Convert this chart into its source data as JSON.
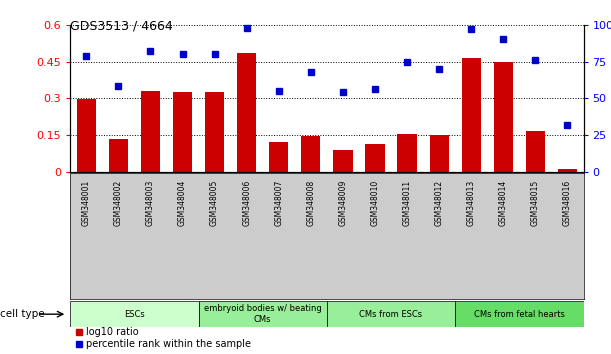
{
  "title": "GDS3513 / 4664",
  "samples": [
    "GSM348001",
    "GSM348002",
    "GSM348003",
    "GSM348004",
    "GSM348005",
    "GSM348006",
    "GSM348007",
    "GSM348008",
    "GSM348009",
    "GSM348010",
    "GSM348011",
    "GSM348012",
    "GSM348013",
    "GSM348014",
    "GSM348015",
    "GSM348016"
  ],
  "log10_ratio": [
    0.295,
    0.135,
    0.33,
    0.325,
    0.325,
    0.485,
    0.12,
    0.145,
    0.09,
    0.115,
    0.155,
    0.15,
    0.465,
    0.45,
    0.165,
    0.01
  ],
  "percentile_rank": [
    79,
    58,
    82,
    80,
    80,
    98,
    55,
    68,
    54,
    56,
    75,
    70,
    97,
    90,
    76,
    32
  ],
  "ylim_left": [
    0,
    0.6
  ],
  "ylim_right": [
    0,
    100
  ],
  "yticks_left": [
    0,
    0.15,
    0.3,
    0.45,
    0.6
  ],
  "yticks_right": [
    0,
    25,
    50,
    75,
    100
  ],
  "ytick_labels_left": [
    "0",
    "0.15",
    "0.3",
    "0.45",
    "0.6"
  ],
  "ytick_labels_right": [
    "0",
    "25",
    "50",
    "75",
    "100%"
  ],
  "bar_color": "#cc0000",
  "dot_color": "#0000cc",
  "cell_type_groups": [
    {
      "label": "ESCs",
      "start": 0,
      "end": 3,
      "color": "#ccffcc"
    },
    {
      "label": "embryoid bodies w/ beating\nCMs",
      "start": 4,
      "end": 7,
      "color": "#99ee99"
    },
    {
      "label": "CMs from ESCs",
      "start": 8,
      "end": 11,
      "color": "#99ee99"
    },
    {
      "label": "CMs from fetal hearts",
      "start": 12,
      "end": 15,
      "color": "#66dd66"
    }
  ],
  "cell_type_label": "cell type",
  "legend_bar": "log10 ratio",
  "legend_dot": "percentile rank within the sample",
  "plot_bg_color": "#ffffff",
  "xtick_bg_color": "#cccccc",
  "grid_color": "#000000",
  "grid_linestyle": "dotted"
}
